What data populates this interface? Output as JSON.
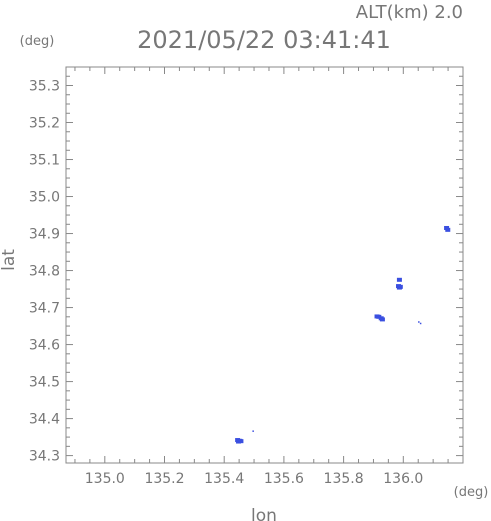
{
  "header": {
    "alt_label": "ALT(km) 2.0",
    "timestamp": "2021/05/22 03:41:41"
  },
  "chart_data": {
    "type": "scatter",
    "title": "2021/05/22 03:41:41",
    "xlabel": "lon",
    "ylabel": "lat",
    "x_unit": "(deg)",
    "y_unit": "(deg)",
    "xlim": [
      134.87,
      136.2
    ],
    "ylim": [
      34.28,
      35.35
    ],
    "xticks": [
      135.0,
      135.2,
      135.4,
      135.6,
      135.8,
      136.0
    ],
    "yticks": [
      34.3,
      34.4,
      34.5,
      34.6,
      34.7,
      34.8,
      34.9,
      35.0,
      35.1,
      35.2,
      35.3
    ],
    "xtick_labels": [
      "135.0",
      "135.2",
      "135.4",
      "135.6",
      "135.8",
      "136.0"
    ],
    "ytick_labels": [
      "34.3",
      "34.4",
      "34.5",
      "34.6",
      "34.7",
      "34.8",
      "34.9",
      "35.0",
      "35.1",
      "35.2",
      "35.3"
    ],
    "grid": false,
    "color": "#3a4fe0",
    "points": [
      {
        "x": 135.445,
        "y": 34.342
      },
      {
        "x": 135.452,
        "y": 34.34
      },
      {
        "x": 135.448,
        "y": 34.338
      },
      {
        "x": 135.456,
        "y": 34.339
      },
      {
        "x": 135.497,
        "y": 34.366,
        "small": true
      },
      {
        "x": 135.912,
        "y": 34.676
      },
      {
        "x": 135.918,
        "y": 34.675
      },
      {
        "x": 135.926,
        "y": 34.671
      },
      {
        "x": 135.93,
        "y": 34.668
      },
      {
        "x": 135.987,
        "y": 34.775
      },
      {
        "x": 135.984,
        "y": 34.758
      },
      {
        "x": 135.99,
        "y": 34.756
      },
      {
        "x": 135.987,
        "y": 34.754
      },
      {
        "x": 136.052,
        "y": 34.661,
        "small": true
      },
      {
        "x": 136.058,
        "y": 34.657,
        "small": true
      },
      {
        "x": 136.145,
        "y": 34.915
      },
      {
        "x": 136.149,
        "y": 34.91
      }
    ]
  }
}
